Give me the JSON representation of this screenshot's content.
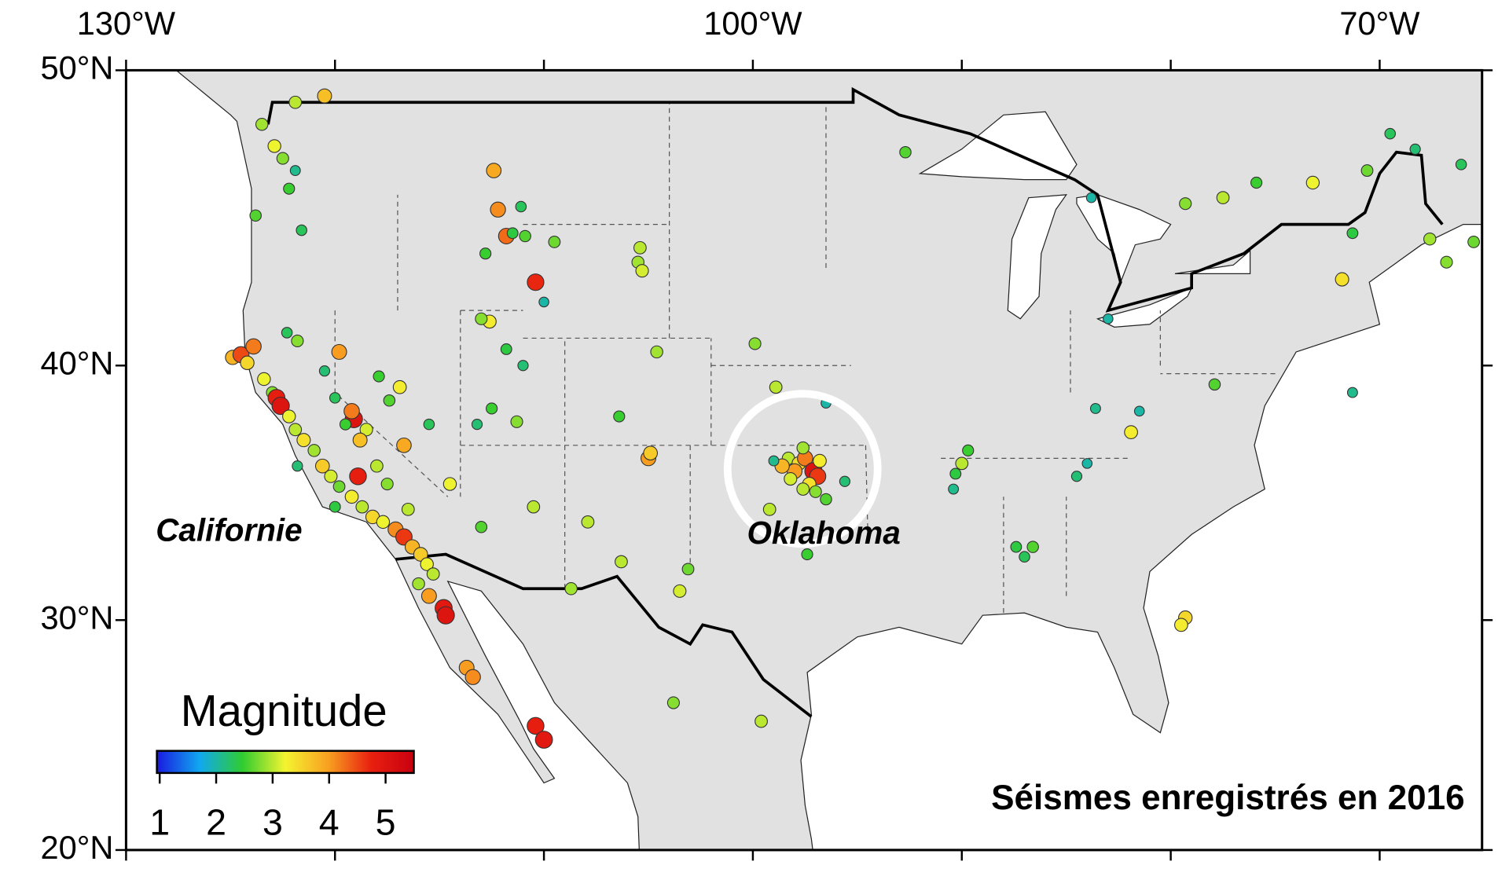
{
  "chart_data": {
    "type": "scatter",
    "projection": "mercator",
    "title": "Séismes enregistrés en 2016",
    "annotations": [
      "Californie",
      "Oklahoma"
    ],
    "xlim": [
      -130,
      -65.1
    ],
    "ylim": [
      20,
      50
    ],
    "xticks": [
      {
        "value": -130,
        "label": "130°W"
      },
      {
        "value": -100,
        "label": "100°W"
      },
      {
        "value": -70,
        "label": "70°W"
      }
    ],
    "xminorticks": [
      -120,
      -110,
      -90,
      -80
    ],
    "yticks": [
      {
        "value": 50,
        "label": "50°N"
      },
      {
        "value": 40,
        "label": "40°N"
      },
      {
        "value": 30,
        "label": "30°N"
      },
      {
        "value": 20,
        "label": "20°N"
      }
    ],
    "colorbar": {
      "label": "Magnitude",
      "lim": [
        0.95,
        5.5
      ],
      "ticks": [
        1,
        2,
        3,
        4,
        5
      ],
      "colors": [
        "#1a1adf",
        "#10a8f0",
        "#30cc30",
        "#f4f430",
        "#f8a020",
        "#e82010",
        "#c80010"
      ]
    },
    "x": [
      -124.9,
      -124.5,
      -123.9,
      -124.2,
      -123.4,
      -123.0,
      -122.8,
      -122.6,
      -122.2,
      -121.9,
      -121.5,
      -121.0,
      -120.6,
      -120.2,
      -119.8,
      -119.2,
      -118.7,
      -118.2,
      -117.7,
      -117.1,
      -116.7,
      -116.3,
      -115.9,
      -115.6,
      -115.3,
      -116.0,
      -115.5,
      -114.8,
      -114.7,
      -120.0,
      -121.8,
      -118.0,
      -117.5,
      -116.5,
      -118.9,
      -119.1,
      -119.2,
      -118.5,
      -118.8,
      -119.5,
      -120.0,
      -120.5,
      -121.8,
      -122.3,
      -119.8,
      -117.9,
      -116.9,
      -117.4,
      -116.7,
      -115.5,
      -122.9,
      -122.5,
      -122.2,
      -121.9,
      -123.5,
      -121.9,
      -121.6,
      -120.5,
      -123.8,
      -112.4,
      -112.2,
      -111.8,
      -110.4,
      -110.9,
      -111.5,
      -112.8,
      -111.1,
      -112.6,
      -111.8,
      -113.0,
      -111.0,
      -110.0,
      -112.5,
      -113.2,
      -111.3,
      -109.5,
      -105.4,
      -105.5,
      -105.3,
      -104.6,
      -105.0,
      -104.9,
      -107.9,
      -106.3,
      -108.7,
      -103.1,
      -103.5,
      -110.5,
      -113.7,
      -113.4,
      -110.4,
      -110.0,
      -103.8,
      -113.0,
      -106.4,
      -114.5,
      -98.3,
      -97.8,
      -97.5,
      -97.1,
      -96.9,
      -97.3,
      -98.0,
      -98.6,
      -98.2,
      -96.8,
      -97.6,
      -96.5,
      -95.6,
      -97.0,
      -99.0,
      -99.2,
      -98.9,
      -99.9,
      -97.4,
      -96.5,
      -97.6,
      -90.0,
      -89.7,
      -90.3,
      -90.4,
      -84.5,
      -84.0,
      -86.6,
      -87.0,
      -87.4,
      -81.9,
      -81.5,
      -83.6,
      -79.3,
      -79.5,
      -83.0,
      -83.8,
      -92.7,
      -77.9,
      -71.3,
      -71.8,
      -79.3,
      -77.5,
      -75.9,
      -73.2,
      -71.3,
      -70.6,
      -69.5,
      -68.3,
      -66.1,
      -65.5,
      -67.6,
      -66.8,
      -99.6
    ],
    "y": [
      40.3,
      40.4,
      40.7,
      40.1,
      39.5,
      39.0,
      38.8,
      38.5,
      38.1,
      37.6,
      37.2,
      36.8,
      36.2,
      35.8,
      35.4,
      35.0,
      34.6,
      34.2,
      34.0,
      33.7,
      33.4,
      33.0,
      32.7,
      32.3,
      31.9,
      31.5,
      31.0,
      30.5,
      30.2,
      34.6,
      36.2,
      36.2,
      35.5,
      34.5,
      35.8,
      38.0,
      38.3,
      37.6,
      37.2,
      37.8,
      38.8,
      39.8,
      40.9,
      41.2,
      40.5,
      39.6,
      39.2,
      38.7,
      37.0,
      37.8,
      47.6,
      47.2,
      46.2,
      46.8,
      48.3,
      49.0,
      44.8,
      49.2,
      45.3,
      46.8,
      45.5,
      44.6,
      43.0,
      44.6,
      44.7,
      44.0,
      45.6,
      41.6,
      40.6,
      41.7,
      40.0,
      42.3,
      38.4,
      37.8,
      37.9,
      44.4,
      44.2,
      43.7,
      43.4,
      40.5,
      36.5,
      36.7,
      34.0,
      32.4,
      31.3,
      32.1,
      31.2,
      34.6,
      28.0,
      27.6,
      25.5,
      24.9,
      26.5,
      33.8,
      38.1,
      35.5,
      36.5,
      36.3,
      36.5,
      36.0,
      35.8,
      35.5,
      36.0,
      36.2,
      35.7,
      36.4,
      35.3,
      34.9,
      35.6,
      35.2,
      36.4,
      34.5,
      39.2,
      40.8,
      32.7,
      38.6,
      36.9,
      36.3,
      36.8,
      35.9,
      35.3,
      35.8,
      36.3,
      33.0,
      32.6,
      33.0,
      37.5,
      38.3,
      38.4,
      30.1,
      29.8,
      41.7,
      45.9,
      47.4,
      39.3,
      39.0,
      43.1,
      45.7,
      45.9,
      46.4,
      46.4,
      44.7,
      46.8,
      48.0,
      47.5,
      47.0,
      44.4,
      44.5,
      43.7,
      25.7
    ],
    "values": [
      3.8,
      4.5,
      4.2,
      3.5,
      3.2,
      2.8,
      4.8,
      5.0,
      3.2,
      3.0,
      3.4,
      2.9,
      3.6,
      3.1,
      2.7,
      3.3,
      3.0,
      3.5,
      3.2,
      4.1,
      4.6,
      3.8,
      3.6,
      3.2,
      3.0,
      2.9,
      4.0,
      4.9,
      5.0,
      2.4,
      2.2,
      3.0,
      2.8,
      3.0,
      4.8,
      5.0,
      4.2,
      3.1,
      3.7,
      2.5,
      2.3,
      2.2,
      2.8,
      2.3,
      4.0,
      2.5,
      3.3,
      2.6,
      3.9,
      2.3,
      3.2,
      2.8,
      2.5,
      2.1,
      2.9,
      3.0,
      2.3,
      3.7,
      2.6,
      3.9,
      4.1,
      4.3,
      4.7,
      2.6,
      2.4,
      2.5,
      2.3,
      3.3,
      2.4,
      2.8,
      2.2,
      2.0,
      2.5,
      2.2,
      2.8,
      2.7,
      3.0,
      2.9,
      3.1,
      2.9,
      4.0,
      3.6,
      3.0,
      3.0,
      2.9,
      2.7,
      3.1,
      3.0,
      4.0,
      4.1,
      4.8,
      4.9,
      2.8,
      2.6,
      2.5,
      3.2,
      3.0,
      3.5,
      4.2,
      5.0,
      4.6,
      3.4,
      4.0,
      3.8,
      3.1,
      3.3,
      3.0,
      2.6,
      2.2,
      2.8,
      2.1,
      3.0,
      3.0,
      2.8,
      2.5,
      2.0,
      2.9,
      3.0,
      2.5,
      2.4,
      2.1,
      2.2,
      2.0,
      2.6,
      2.3,
      2.4,
      3.3,
      2.0,
      2.1,
      3.5,
      3.3,
      2.0,
      2.0,
      2.6,
      2.6,
      2.1,
      3.4,
      2.8,
      3.0,
      2.5,
      3.2,
      2.4,
      2.7,
      2.3,
      2.2,
      2.3,
      2.7,
      2.9,
      2.8,
      3.0
    ]
  }
}
